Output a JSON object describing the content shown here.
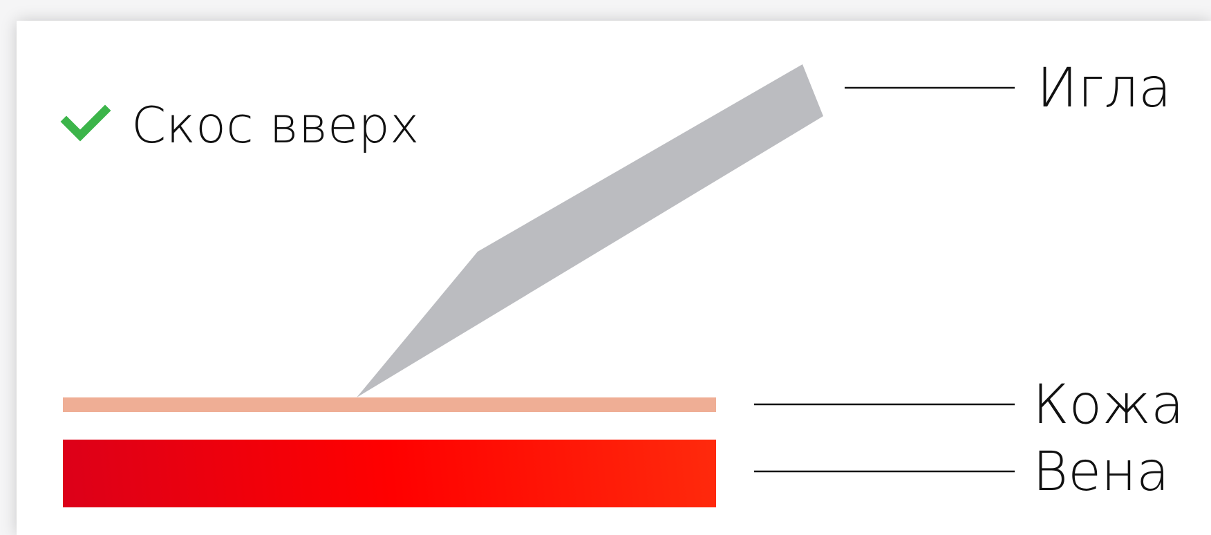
{
  "title": {
    "check_icon": "check-icon",
    "text": "Скос вверх",
    "check_color": "#3cb54a"
  },
  "labels": {
    "needle": "Игла",
    "skin": "Кожа",
    "vein": "Вена"
  },
  "colors": {
    "needle": "#bbbcc0",
    "skin": "#efae95",
    "vein_start": "#dc0019",
    "vein_mid": "#ff0000",
    "vein_end": "#ff2a0c",
    "leader_line": "#111111"
  }
}
